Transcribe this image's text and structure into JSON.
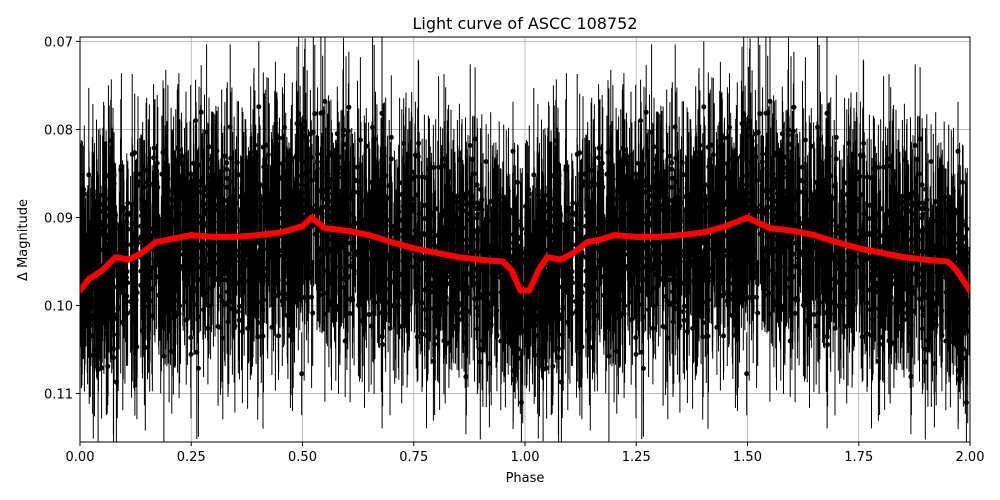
{
  "chart_data": {
    "type": "scatter",
    "title": "Light curve of ASCC 108752",
    "xlabel": "Phase",
    "ylabel": "Δ Magnitude",
    "xlim": [
      0.0,
      2.0
    ],
    "ylim": [
      0.1155,
      0.0695
    ],
    "y_inverted": true,
    "grid": true,
    "legend": null,
    "x_ticks": [
      "0.00",
      "0.25",
      "0.50",
      "0.75",
      "1.00",
      "1.25",
      "1.50",
      "1.75",
      "2.00"
    ],
    "x_tick_values": [
      0.0,
      0.25,
      0.5,
      0.75,
      1.0,
      1.25,
      1.5,
      1.75,
      2.0
    ],
    "y_ticks": [
      "0.07",
      "0.08",
      "0.09",
      "0.10",
      "0.11"
    ],
    "y_tick_values": [
      0.07,
      0.08,
      0.09,
      0.1,
      0.11
    ],
    "series": [
      {
        "name": "observations",
        "style": "black points with vertical error bars",
        "color": "#000000",
        "description": "Dense phase-folded photometry, scatter spans roughly 0.07 to 0.115 mag with error bars ~0.005-0.01 mag, shown twice (phase 0-2)"
      },
      {
        "name": "binned mean",
        "style": "thick red line",
        "color": "#ff0000",
        "x": [
          0.0,
          0.02,
          0.05,
          0.08,
          0.11,
          0.14,
          0.17,
          0.2,
          0.25,
          0.3,
          0.35,
          0.4,
          0.45,
          0.5,
          0.52,
          0.55,
          0.6,
          0.65,
          0.7,
          0.75,
          0.8,
          0.85,
          0.9,
          0.95,
          0.97,
          0.99,
          1.01,
          1.03,
          1.05,
          1.08,
          1.11,
          1.14,
          1.17,
          1.2,
          1.25,
          1.3,
          1.35,
          1.4,
          1.45,
          1.5,
          1.52,
          1.55,
          1.6,
          1.65,
          1.7,
          1.75,
          1.8,
          1.85,
          1.9,
          1.95,
          1.97,
          2.0
        ],
        "values": [
          0.0983,
          0.097,
          0.096,
          0.0945,
          0.0948,
          0.094,
          0.0928,
          0.0925,
          0.092,
          0.0922,
          0.0922,
          0.092,
          0.0917,
          0.091,
          0.09,
          0.0912,
          0.0915,
          0.092,
          0.0928,
          0.0935,
          0.094,
          0.0945,
          0.0948,
          0.095,
          0.096,
          0.0983,
          0.0983,
          0.096,
          0.0945,
          0.0948,
          0.094,
          0.0928,
          0.0925,
          0.092,
          0.0922,
          0.0922,
          0.092,
          0.0917,
          0.091,
          0.09,
          0.0905,
          0.0912,
          0.0915,
          0.092,
          0.0928,
          0.0935,
          0.094,
          0.0945,
          0.0948,
          0.095,
          0.096,
          0.0983
        ]
      }
    ]
  },
  "colors": {
    "background": "#ffffff",
    "points": "#000000",
    "mean_line": "#ff0000",
    "grid": "#b0b0b0",
    "axes": "#000000"
  }
}
